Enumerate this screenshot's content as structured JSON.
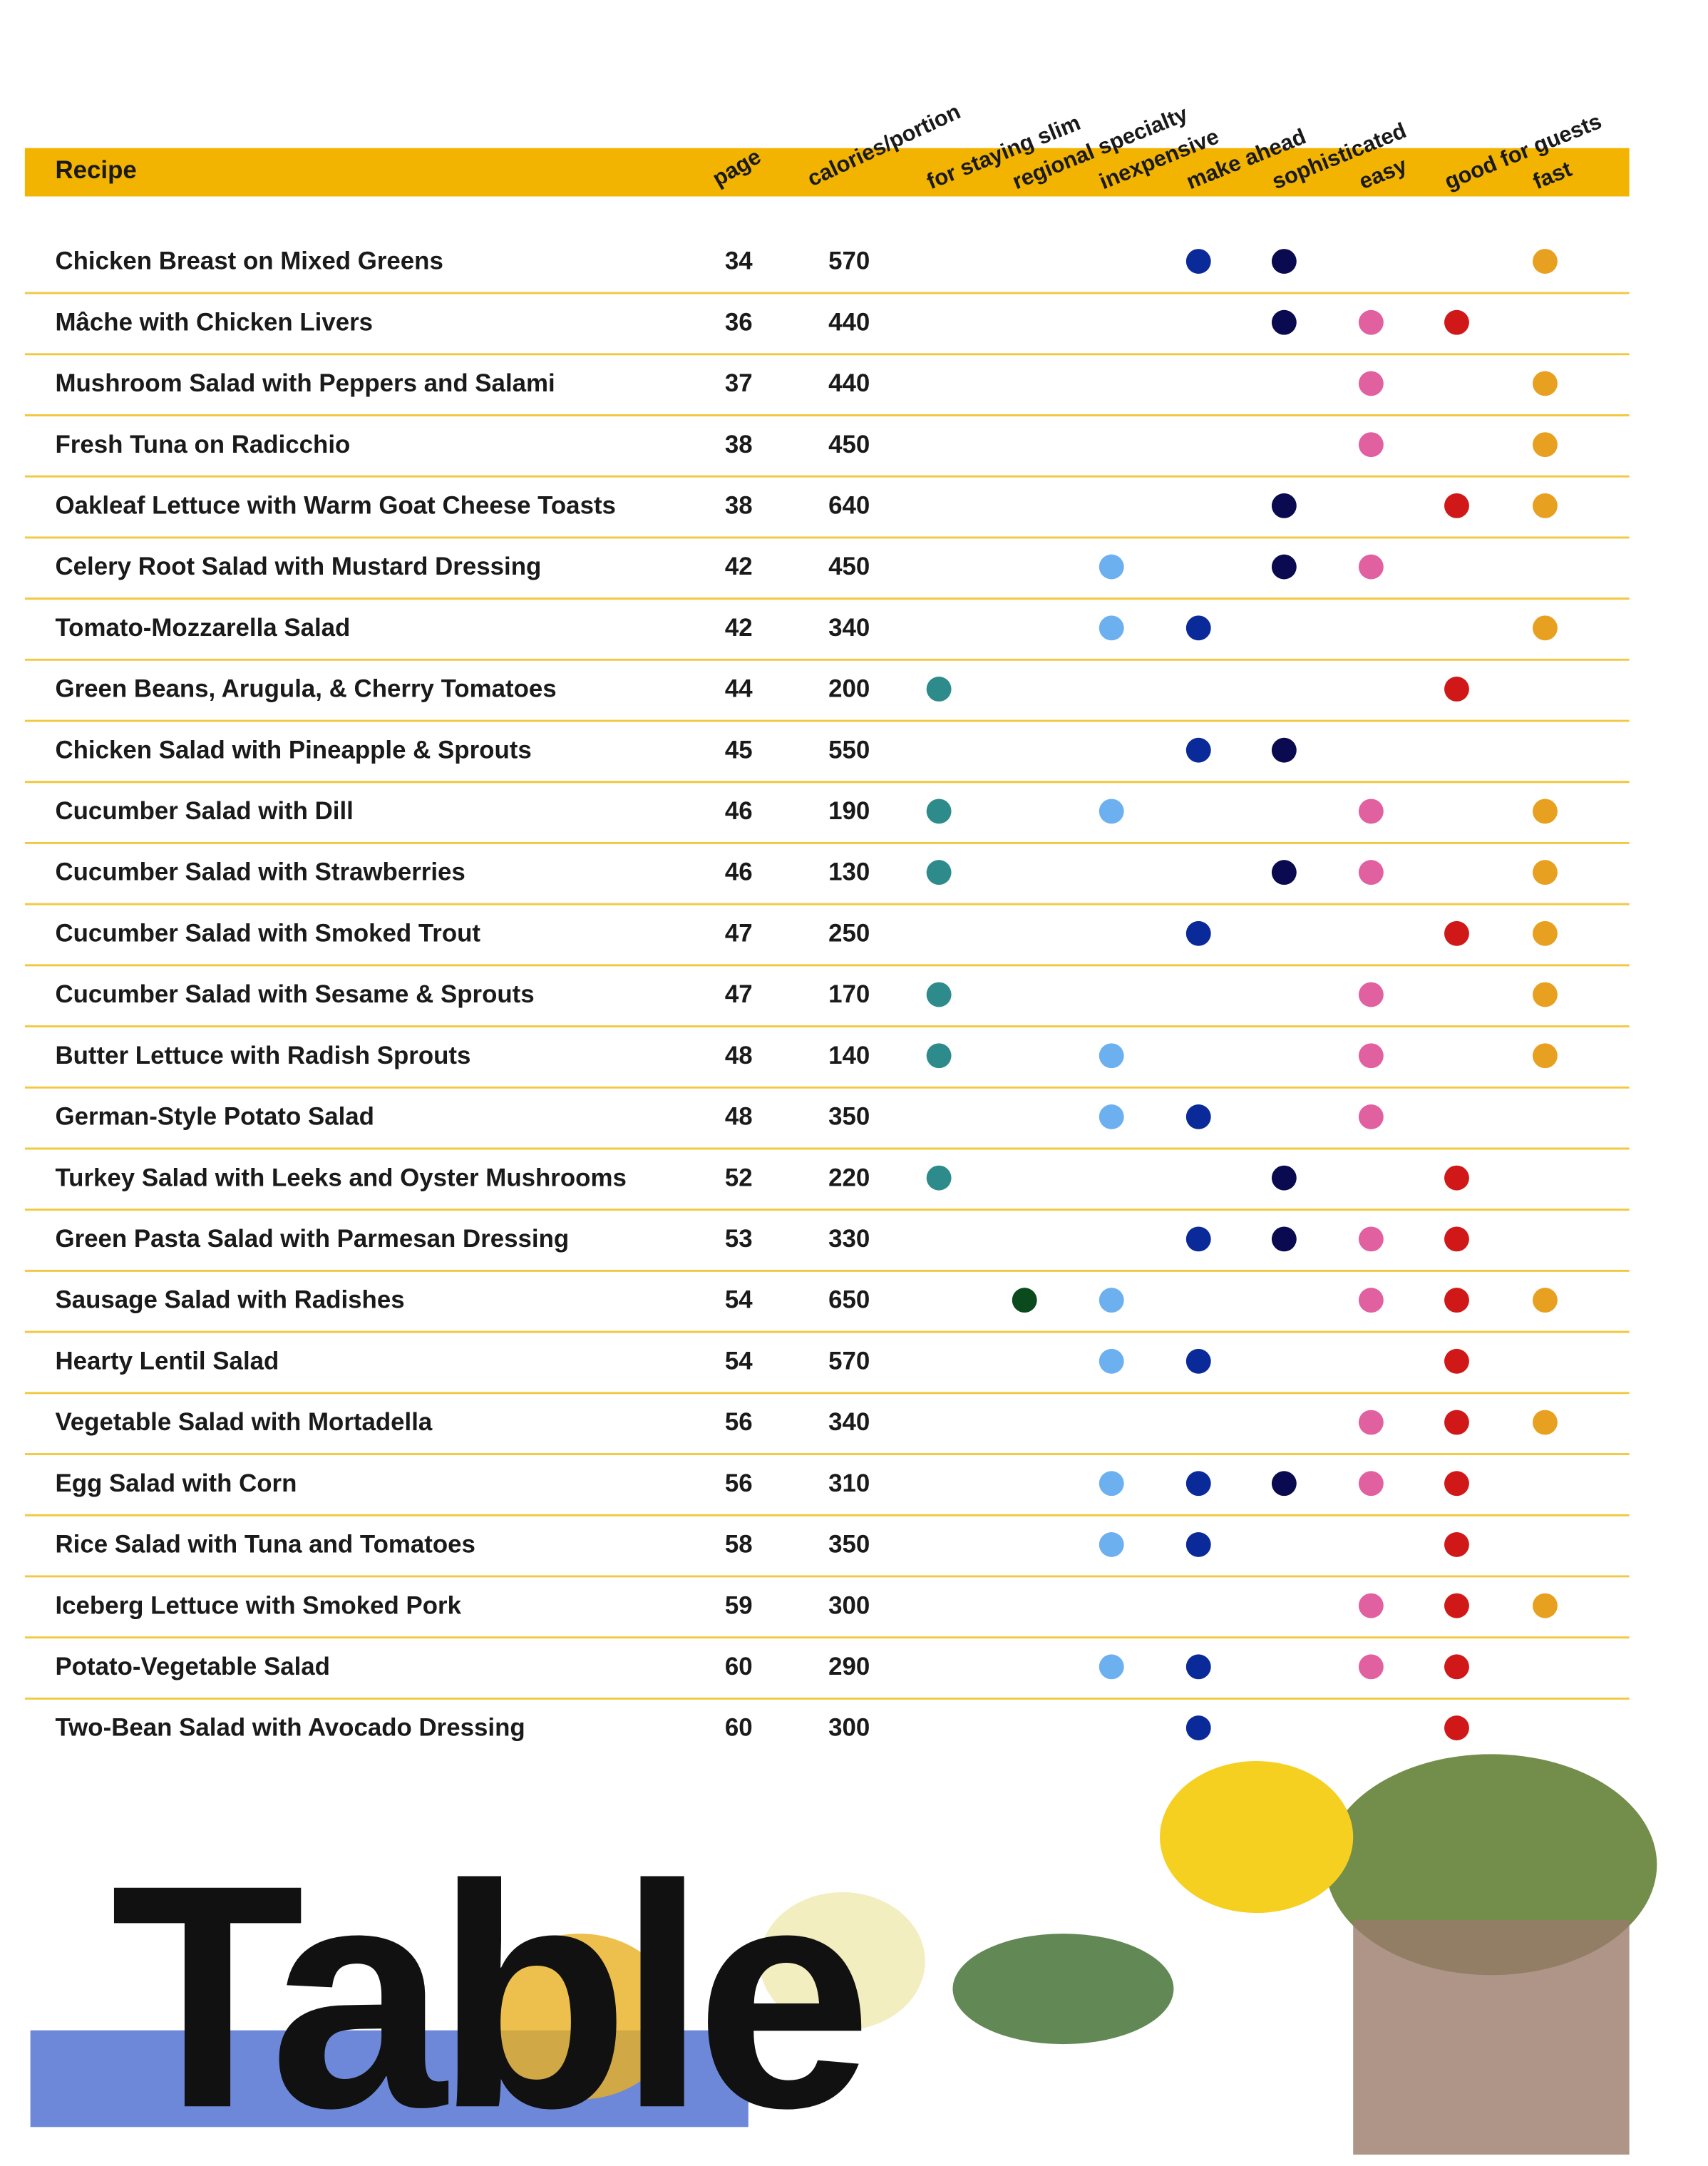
{
  "header": {
    "recipe": "Recipe",
    "page": "page",
    "calories": "calories/portion",
    "tags": [
      "for staying slim",
      "regional specialty",
      "inexpensive",
      "make ahead",
      "sophisticated",
      "easy",
      "good for guests",
      "fast"
    ]
  },
  "tag_colors": [
    "#2e8b8b",
    "#0b4a1c",
    "#6cb0f0",
    "#0a2a9a",
    "#0a0a50",
    "#e060a0",
    "#d01818",
    "#e8a020"
  ],
  "rows": [
    {
      "recipe": "Chicken Breast on Mixed Greens",
      "page": 34,
      "calories": 570,
      "flags": [
        false,
        false,
        false,
        true,
        true,
        false,
        false,
        true
      ]
    },
    {
      "recipe": "Mâche with Chicken Livers",
      "page": 36,
      "calories": 440,
      "flags": [
        false,
        false,
        false,
        false,
        true,
        true,
        true,
        false
      ]
    },
    {
      "recipe": "Mushroom Salad with Peppers and Salami",
      "page": 37,
      "calories": 440,
      "flags": [
        false,
        false,
        false,
        false,
        false,
        true,
        false,
        true
      ]
    },
    {
      "recipe": "Fresh Tuna on Radicchio",
      "page": 38,
      "calories": 450,
      "flags": [
        false,
        false,
        false,
        false,
        false,
        true,
        false,
        true
      ]
    },
    {
      "recipe": "Oakleaf Lettuce with Warm Goat Cheese Toasts",
      "page": 38,
      "calories": 640,
      "flags": [
        false,
        false,
        false,
        false,
        true,
        false,
        true,
        true
      ]
    },
    {
      "recipe": "Celery Root Salad with Mustard Dressing",
      "page": 42,
      "calories": 450,
      "flags": [
        false,
        false,
        true,
        false,
        true,
        true,
        false,
        false
      ]
    },
    {
      "recipe": "Tomato-Mozzarella Salad",
      "page": 42,
      "calories": 340,
      "flags": [
        false,
        false,
        true,
        true,
        false,
        false,
        false,
        true
      ]
    },
    {
      "recipe": "Green Beans, Arugula, & Cherry Tomatoes",
      "page": 44,
      "calories": 200,
      "flags": [
        true,
        false,
        false,
        false,
        false,
        false,
        true,
        false
      ]
    },
    {
      "recipe": "Chicken Salad with Pineapple & Sprouts",
      "page": 45,
      "calories": 550,
      "flags": [
        false,
        false,
        false,
        true,
        true,
        false,
        false,
        false
      ]
    },
    {
      "recipe": "Cucumber Salad with Dill",
      "page": 46,
      "calories": 190,
      "flags": [
        true,
        false,
        true,
        false,
        false,
        true,
        false,
        true
      ]
    },
    {
      "recipe": "Cucumber Salad with Strawberries",
      "page": 46,
      "calories": 130,
      "flags": [
        true,
        false,
        false,
        false,
        true,
        true,
        false,
        true
      ]
    },
    {
      "recipe": "Cucumber Salad with Smoked Trout",
      "page": 47,
      "calories": 250,
      "flags": [
        false,
        false,
        false,
        true,
        false,
        false,
        true,
        true
      ]
    },
    {
      "recipe": "Cucumber Salad with Sesame & Sprouts",
      "page": 47,
      "calories": 170,
      "flags": [
        true,
        false,
        false,
        false,
        false,
        true,
        false,
        true
      ]
    },
    {
      "recipe": "Butter Lettuce with Radish Sprouts",
      "page": 48,
      "calories": 140,
      "flags": [
        true,
        false,
        true,
        false,
        false,
        true,
        false,
        true
      ]
    },
    {
      "recipe": "German-Style Potato Salad",
      "page": 48,
      "calories": 350,
      "flags": [
        false,
        false,
        true,
        true,
        false,
        true,
        false,
        false
      ]
    },
    {
      "recipe": "Turkey Salad with Leeks and Oyster Mushrooms",
      "page": 52,
      "calories": 220,
      "flags": [
        true,
        false,
        false,
        false,
        true,
        false,
        true,
        false
      ]
    },
    {
      "recipe": "Green Pasta Salad with Parmesan Dressing",
      "page": 53,
      "calories": 330,
      "flags": [
        false,
        false,
        false,
        true,
        true,
        true,
        true,
        false
      ]
    },
    {
      "recipe": "Sausage Salad with Radishes",
      "page": 54,
      "calories": 650,
      "flags": [
        false,
        true,
        true,
        false,
        false,
        true,
        true,
        true
      ]
    },
    {
      "recipe": "Hearty Lentil Salad",
      "page": 54,
      "calories": 570,
      "flags": [
        false,
        false,
        true,
        true,
        false,
        false,
        true,
        false
      ]
    },
    {
      "recipe": "Vegetable Salad with Mortadella",
      "page": 56,
      "calories": 340,
      "flags": [
        false,
        false,
        false,
        false,
        false,
        true,
        true,
        true
      ]
    },
    {
      "recipe": "Egg Salad with Corn",
      "page": 56,
      "calories": 310,
      "flags": [
        false,
        false,
        true,
        true,
        true,
        true,
        true,
        false
      ]
    },
    {
      "recipe": "Rice Salad with Tuna and Tomatoes",
      "page": 58,
      "calories": 350,
      "flags": [
        false,
        false,
        true,
        true,
        false,
        false,
        true,
        false
      ]
    },
    {
      "recipe": "Iceberg Lettuce with Smoked Pork",
      "page": 59,
      "calories": 300,
      "flags": [
        false,
        false,
        false,
        false,
        false,
        true,
        true,
        true
      ]
    },
    {
      "recipe": "Potato-Vegetable Salad",
      "page": 60,
      "calories": 290,
      "flags": [
        false,
        false,
        true,
        true,
        false,
        true,
        true,
        false
      ]
    },
    {
      "recipe": "Two-Bean Salad with Avocado Dressing",
      "page": 60,
      "calories": 300,
      "flags": [
        false,
        false,
        false,
        true,
        false,
        false,
        true,
        false
      ]
    }
  ],
  "footer_title": "Table"
}
